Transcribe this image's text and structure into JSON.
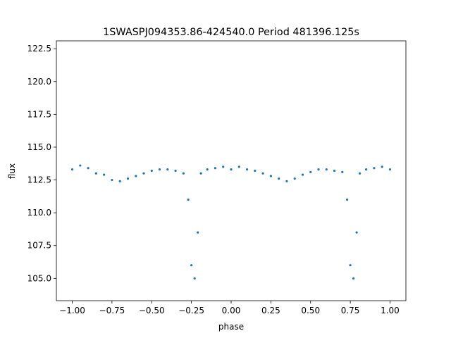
{
  "chart_data": {
    "type": "scatter",
    "title": "1SWASPJ094353.86-424540.0 Period 481396.125s",
    "xlabel": "phase",
    "ylabel": "flux",
    "xlim": [
      -1.1,
      1.1
    ],
    "ylim": [
      103.3,
      123.1
    ],
    "xticks": [
      -1.0,
      -0.75,
      -0.5,
      -0.25,
      0.0,
      0.25,
      0.5,
      0.75,
      1.0
    ],
    "xtick_labels": [
      "−1.00",
      "−0.75",
      "−0.50",
      "−0.25",
      "0.00",
      "0.25",
      "0.50",
      "0.75",
      "1.00"
    ],
    "yticks": [
      105.0,
      107.5,
      110.0,
      112.5,
      115.0,
      117.5,
      120.0,
      122.5
    ],
    "ytick_labels": [
      "105.0",
      "107.5",
      "110.0",
      "112.5",
      "115.0",
      "117.5",
      "120.0",
      "122.5"
    ],
    "grid": false,
    "legend": "none",
    "marker_color": "#1f77b4",
    "series": [
      {
        "x": [
          -1.0,
          -0.95,
          -0.9,
          -0.85,
          -0.8,
          -0.75,
          -0.7,
          -0.65,
          -0.6,
          -0.55,
          -0.5,
          -0.45,
          -0.4,
          -0.35,
          -0.3,
          -0.27,
          -0.25,
          -0.23,
          -0.21,
          -0.19,
          -0.15,
          -0.1,
          -0.05,
          0.0,
          0.05,
          0.1,
          0.15,
          0.2,
          0.25,
          0.3,
          0.35,
          0.4,
          0.45,
          0.5,
          0.55,
          0.6,
          0.65,
          0.7,
          0.73,
          0.75,
          0.77,
          0.79,
          0.81,
          0.85,
          0.9,
          0.95,
          1.0
        ],
        "y": [
          113.3,
          113.6,
          113.4,
          113.0,
          112.9,
          112.5,
          112.4,
          112.6,
          112.8,
          113.0,
          113.2,
          113.3,
          113.3,
          113.2,
          113.0,
          111.0,
          106.0,
          105.0,
          108.5,
          113.0,
          113.3,
          113.4,
          113.5,
          113.3,
          113.5,
          113.3,
          113.2,
          113.0,
          112.8,
          112.6,
          112.4,
          112.6,
          112.9,
          113.1,
          113.3,
          113.3,
          113.2,
          113.1,
          111.0,
          106.0,
          105.0,
          108.5,
          113.0,
          113.3,
          113.4,
          113.5,
          113.3
        ]
      }
    ]
  }
}
